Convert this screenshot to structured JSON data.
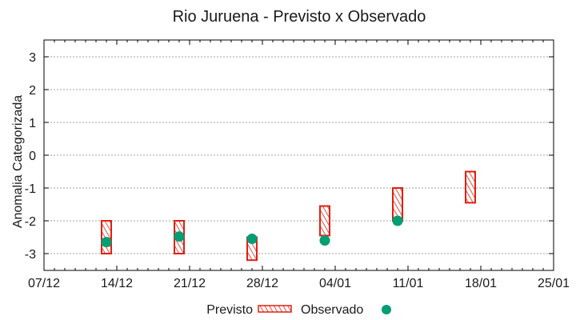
{
  "chart_data": {
    "type": "scatter",
    "title": "Rio Juruena - Previsto x Observado",
    "xlabel": "",
    "ylabel": "Anomalia Categorizada",
    "ylim": [
      -3.5,
      3.5
    ],
    "yticks": [
      3,
      2,
      1,
      0,
      -1,
      -2,
      -3
    ],
    "ytick_labels": [
      "3",
      "2",
      "1",
      "0",
      "-1",
      "-2",
      "-3"
    ],
    "xtick_labels": [
      "07/12",
      "14/12",
      "21/12",
      "28/12",
      "04/01",
      "11/01",
      "18/01",
      "25/01"
    ],
    "xlim_days": [
      0,
      49
    ],
    "grid": "horizontal dotted",
    "legend_position": "bottom",
    "legend": [
      "Previsto",
      "Observado"
    ],
    "series": [
      {
        "name": "Previsto",
        "kind": "range-box",
        "color": "#e02010",
        "points": [
          {
            "x_day": 6,
            "low": -3.0,
            "high": -2.0
          },
          {
            "x_day": 13,
            "low": -3.0,
            "high": -2.0
          },
          {
            "x_day": 20,
            "low": -3.2,
            "high": -2.5
          },
          {
            "x_day": 27,
            "low": -2.45,
            "high": -1.55
          },
          {
            "x_day": 34,
            "low": -2.0,
            "high": -1.0
          },
          {
            "x_day": 41,
            "low": -1.45,
            "high": -0.5
          }
        ]
      },
      {
        "name": "Observado",
        "kind": "point",
        "color": "#009e73",
        "points": [
          {
            "x_day": 6,
            "y": -2.65
          },
          {
            "x_day": 13,
            "y": -2.48
          },
          {
            "x_day": 20,
            "y": -2.55
          },
          {
            "x_day": 27,
            "y": -2.6
          },
          {
            "x_day": 34,
            "y": -2.0
          }
        ]
      }
    ]
  }
}
